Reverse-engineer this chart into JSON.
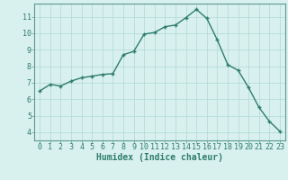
{
  "x": [
    0,
    1,
    2,
    3,
    4,
    5,
    6,
    7,
    8,
    9,
    10,
    11,
    12,
    13,
    14,
    15,
    16,
    17,
    18,
    19,
    20,
    21,
    22,
    23
  ],
  "y": [
    6.5,
    6.9,
    6.8,
    7.1,
    7.3,
    7.4,
    7.5,
    7.55,
    8.7,
    8.9,
    9.95,
    10.05,
    10.4,
    10.5,
    10.95,
    11.45,
    10.9,
    9.6,
    8.1,
    7.75,
    6.7,
    5.5,
    4.65,
    4.05
  ],
  "line_color": "#2e7d6e",
  "marker": "+",
  "markersize": 3.5,
  "linewidth": 1.0,
  "background_color": "#d8f0ee",
  "grid_color_major": "#b0d8d4",
  "grid_color_minor": "#c8e8e4",
  "xlabel": "Humidex (Indice chaleur)",
  "xlabel_fontsize": 7,
  "xlim": [
    -0.5,
    23.5
  ],
  "ylim": [
    3.5,
    11.8
  ],
  "yticks": [
    4,
    5,
    6,
    7,
    8,
    9,
    10,
    11
  ],
  "xtick_labels": [
    "0",
    "1",
    "2",
    "3",
    "4",
    "5",
    "6",
    "7",
    "8",
    "9",
    "10",
    "11",
    "12",
    "13",
    "14",
    "15",
    "16",
    "17",
    "18",
    "19",
    "20",
    "21",
    "22",
    "23"
  ],
  "tick_fontsize": 6,
  "spine_color": "#5a9a90"
}
